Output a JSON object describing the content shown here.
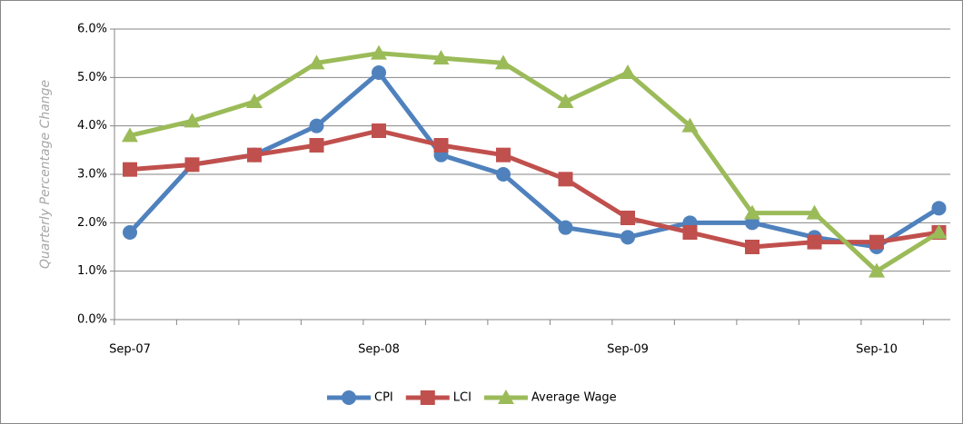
{
  "chart_data": {
    "type": "line",
    "y_label": "Quarterly Percentage Change",
    "categories": [
      "Sep-07",
      null,
      null,
      null,
      "Sep-08",
      null,
      null,
      null,
      "Sep-09",
      null,
      null,
      null,
      "Sep-10",
      null
    ],
    "series": [
      {
        "name": "CPI",
        "color": "#4f81bd",
        "marker": "circle",
        "values": [
          1.8,
          3.2,
          3.4,
          4.0,
          5.1,
          3.4,
          3.0,
          1.9,
          1.7,
          2.0,
          2.0,
          1.7,
          1.5,
          2.3
        ]
      },
      {
        "name": "LCI",
        "color": "#c0504d",
        "marker": "square",
        "values": [
          3.1,
          3.2,
          3.4,
          3.6,
          3.9,
          3.6,
          3.4,
          2.9,
          2.1,
          1.8,
          1.5,
          1.6,
          1.6,
          1.8
        ]
      },
      {
        "name": "Average Wage",
        "color": "#9bbb59",
        "marker": "triangle",
        "values": [
          3.8,
          4.1,
          4.5,
          5.3,
          5.5,
          5.4,
          5.3,
          4.5,
          5.1,
          4.0,
          2.2,
          2.2,
          1.0,
          1.8
        ]
      }
    ],
    "ylim": [
      0,
      6
    ],
    "yticks": [
      {
        "value": 0,
        "label": "0.0%"
      },
      {
        "value": 1,
        "label": "1.0%"
      },
      {
        "value": 2,
        "label": "2.0%"
      },
      {
        "value": 3,
        "label": "3.0%"
      },
      {
        "value": 4,
        "label": "4.0%"
      },
      {
        "value": 5,
        "label": "5.0%"
      },
      {
        "value": 6,
        "label": "6.0%"
      }
    ],
    "grid": true,
    "legend": "bottom"
  }
}
